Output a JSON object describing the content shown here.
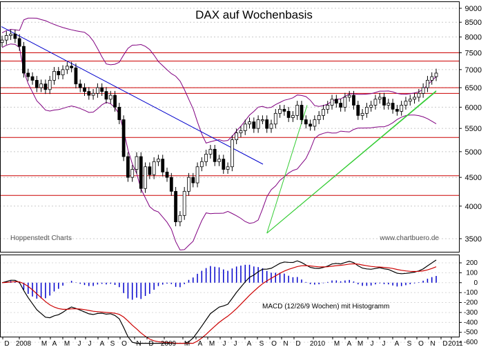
{
  "chart_data": {
    "type": "candlestick",
    "title": "DAX auf Wochenbasis",
    "source_left": "Hoppenstedt Charts",
    "source_right": "www.chartbuero.de",
    "ylim": [
      3300,
      9100
    ],
    "yticks": [
      3500,
      4000,
      4500,
      5000,
      5500,
      6000,
      6500,
      7000,
      7500,
      8000,
      8500,
      9000
    ],
    "ytick_labels": [
      "3500",
      "4000",
      "4500",
      "5000",
      "5500",
      "6000",
      "6500",
      "7000",
      "7500",
      "8000",
      "8500",
      "9000"
    ],
    "xtick_labels": [
      "D",
      "2008",
      "M",
      "A",
      "M",
      "J",
      "J",
      "A",
      "S",
      "O",
      "N",
      "D",
      "2009",
      "M",
      "A",
      "M",
      "J",
      "J",
      "A",
      "S",
      "O",
      "N",
      "D",
      "2010",
      "M",
      "A",
      "M",
      "J",
      "J",
      "A",
      "S",
      "O",
      "N",
      "D",
      "2011"
    ],
    "horizontal_lines": [
      7500,
      7250,
      6500,
      6350,
      5300,
      4530,
      4180
    ],
    "horizontal_line_color": "#cc0000",
    "downtrend_line": {
      "from": [
        "2007-12",
        8350
      ],
      "to": [
        "2009-07",
        4750
      ],
      "color": "#0000cc"
    },
    "uptrend_lines": [
      {
        "from": [
          "2009-03",
          3580
        ],
        "to": [
          "2010-11",
          6420
        ]
      },
      {
        "from": [
          "2009-03",
          3580
        ],
        "to": [
          "2010-11",
          6400
        ]
      },
      {
        "from": [
          "2009-03",
          3580
        ],
        "to": [
          "2010-01",
          6050
        ]
      }
    ],
    "uptrend_color": "#33cc33",
    "bollinger_color": "#800080",
    "close": [
      7900,
      8050,
      8100,
      7950,
      7700,
      6900,
      6800,
      6700,
      6500,
      6600,
      6450,
      6700,
      6950,
      6850,
      7000,
      7100,
      7050,
      6600,
      6500,
      6400,
      6300,
      6350,
      6500,
      6400,
      6200,
      6300,
      6000,
      5700,
      4900,
      4500,
      4650,
      4900,
      4300,
      4700,
      4550,
      4800,
      4850,
      4600,
      4500,
      4250,
      3750,
      3850,
      4250,
      4500,
      4400,
      4700,
      4800,
      4950,
      5050,
      4800,
      4850,
      4650,
      4700,
      5250,
      5400,
      5450,
      5600,
      5650,
      5500,
      5700,
      5700,
      5500,
      5600,
      5850,
      5950,
      5900,
      5750,
      5800,
      6050,
      5700,
      5600,
      5550,
      5700,
      5800,
      5950,
      6050,
      6200,
      6100,
      6000,
      6250,
      6300,
      6050,
      5800,
      5850,
      6000,
      6050,
      6200,
      6250,
      6050,
      6100,
      5950,
      5900,
      6050,
      6150,
      6200,
      6250,
      6350,
      6500,
      6700,
      6800,
      6900
    ],
    "macd": {
      "label": "MACD (12/26/9 Wochen) mit Histogramm",
      "ylim": [
        -620,
        250
      ],
      "yticks": [
        200,
        100,
        0,
        -100,
        -200,
        -300,
        -400,
        -500,
        -600
      ],
      "ytick_labels": [
        "200",
        "100",
        "0",
        "-100",
        "-200",
        "-300",
        "-400",
        "-500",
        "-600"
      ],
      "macd_color": "#000000",
      "signal_color": "#cc0000",
      "histogram_color": "#0000cc"
    }
  }
}
